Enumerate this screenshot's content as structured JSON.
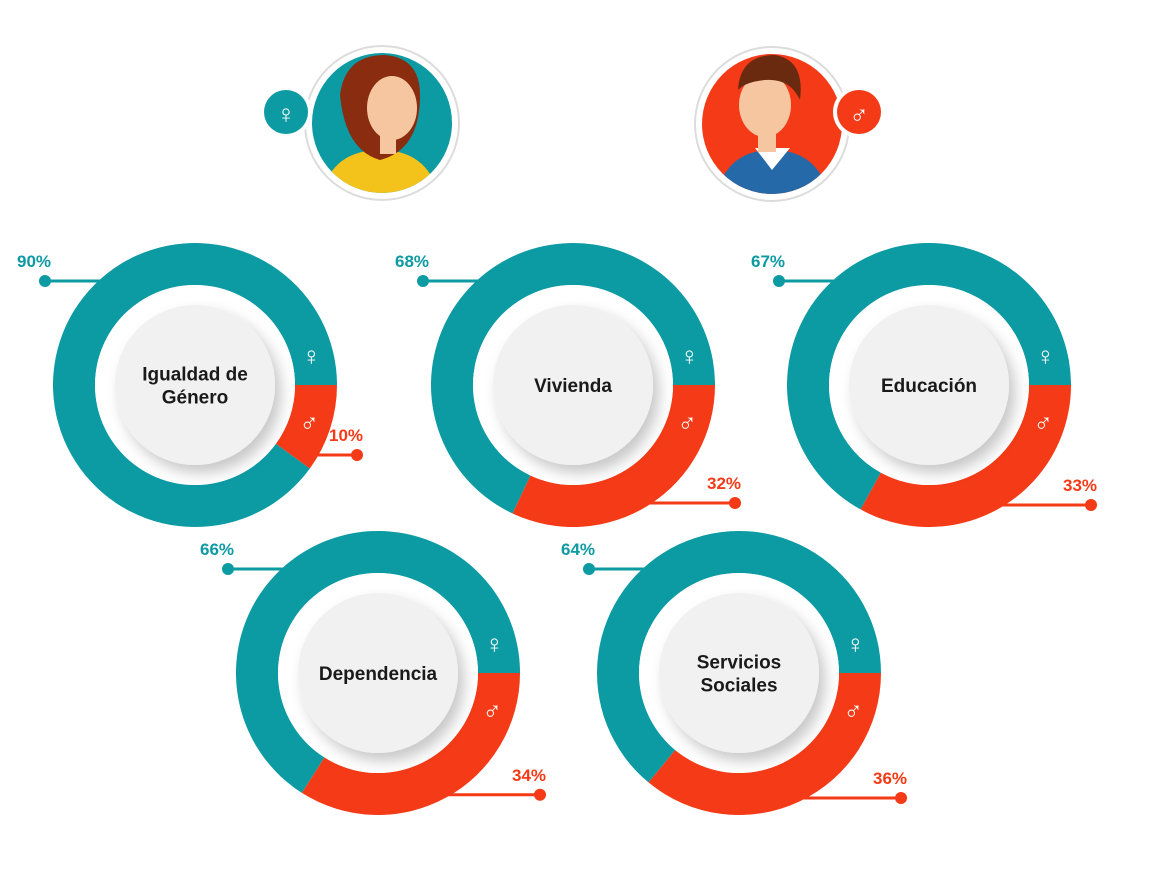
{
  "colors": {
    "female": "#0c9aa3",
    "male": "#f43a16",
    "female_symbol": "♀",
    "male_symbol": "♂",
    "center": "#f1f1f1",
    "text": "#1a1a1a"
  },
  "header": {
    "female_icon": "woman-avatar-icon",
    "male_icon": "man-avatar-icon"
  },
  "chart_data": [
    {
      "type": "pie",
      "title_lines": [
        "Igualdad de",
        "Género"
      ],
      "series": [
        {
          "name": "♀",
          "value": 90,
          "label": "90%"
        },
        {
          "name": "♂",
          "value": 10,
          "label": "10%"
        }
      ]
    },
    {
      "type": "pie",
      "title_lines": [
        "Vivienda"
      ],
      "series": [
        {
          "name": "♀",
          "value": 68,
          "label": "68%"
        },
        {
          "name": "♂",
          "value": 32,
          "label": "32%"
        }
      ]
    },
    {
      "type": "pie",
      "title_lines": [
        "Educación"
      ],
      "series": [
        {
          "name": "♀",
          "value": 67,
          "label": "67%"
        },
        {
          "name": "♂",
          "value": 33,
          "label": "33%"
        }
      ]
    },
    {
      "type": "pie",
      "title_lines": [
        "Dependencia"
      ],
      "series": [
        {
          "name": "♀",
          "value": 66,
          "label": "66%"
        },
        {
          "name": "♂",
          "value": 34,
          "label": "34%"
        }
      ]
    },
    {
      "type": "pie",
      "title_lines": [
        "Servicios",
        "Sociales"
      ],
      "series": [
        {
          "name": "♀",
          "value": 64,
          "label": "64%"
        },
        {
          "name": "♂",
          "value": 36,
          "label": "36%"
        }
      ]
    }
  ]
}
